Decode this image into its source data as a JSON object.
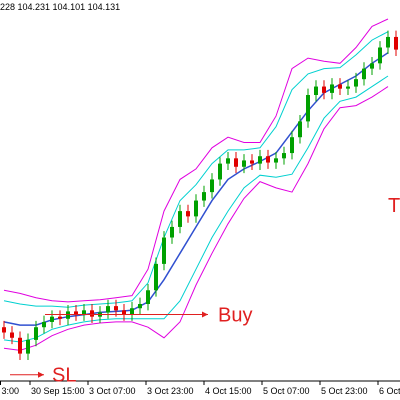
{
  "chart_data": {
    "type": "candlestick",
    "header": "228 104.231 104.101 104.131",
    "xlim": [
      -0.5,
      49.5
    ],
    "ylim": [
      101.0,
      104.6
    ],
    "xticks": [
      {
        "value": -0.5,
        "label": "3:00"
      },
      {
        "value": 3.25,
        "label": "30 Sep 15:00"
      },
      {
        "value": 10.5,
        "label": "3 Oct 07:00"
      },
      {
        "value": 17.75,
        "label": "3 Oct 23:00"
      },
      {
        "value": 25,
        "label": "4 Oct 15:00"
      },
      {
        "value": 32.25,
        "label": "5 Oct 07:00"
      },
      {
        "value": 39.5,
        "label": "5 Oct 23:00"
      },
      {
        "value": 46.75,
        "label": "6 Oct"
      }
    ],
    "up_color": "#00a000",
    "down_color": "#e00000",
    "open": [
      101.5,
      101.45,
      101.4,
      101.25,
      101.38,
      101.5,
      101.55,
      101.6,
      101.58,
      101.65,
      101.62,
      101.66,
      101.6,
      101.64,
      101.7,
      101.66,
      101.62,
      101.68,
      101.72,
      101.85,
      102.1,
      102.35,
      102.45,
      102.6,
      102.55,
      102.7,
      102.78,
      102.9,
      103.05,
      103.1,
      103.02,
      103.08,
      103.05,
      103.12,
      103.06,
      103.1,
      103.15,
      103.3,
      103.45,
      103.7,
      103.78,
      103.72,
      103.8,
      103.76,
      103.78,
      103.85,
      103.95,
      104.0,
      104.15,
      104.25
    ],
    "high": [
      101.56,
      101.51,
      101.46,
      101.44,
      101.56,
      101.61,
      101.66,
      101.66,
      101.71,
      101.71,
      101.72,
      101.72,
      101.7,
      101.76,
      101.76,
      101.72,
      101.74,
      101.78,
      101.91,
      102.16,
      102.41,
      102.51,
      102.66,
      102.66,
      102.76,
      102.84,
      102.96,
      103.11,
      103.16,
      103.16,
      103.14,
      103.14,
      103.18,
      103.18,
      103.16,
      103.21,
      103.36,
      103.51,
      103.76,
      103.84,
      103.84,
      103.86,
      103.86,
      103.84,
      103.91,
      104.01,
      104.06,
      104.21,
      104.31,
      104.31
    ],
    "low": [
      101.39,
      101.34,
      101.19,
      101.19,
      101.32,
      101.44,
      101.49,
      101.52,
      101.52,
      101.56,
      101.56,
      101.54,
      101.54,
      101.58,
      101.6,
      101.56,
      101.56,
      101.62,
      101.66,
      101.79,
      102.04,
      102.29,
      102.39,
      102.49,
      102.49,
      102.64,
      102.72,
      102.84,
      102.99,
      102.96,
      102.96,
      102.99,
      102.99,
      103.0,
      103.0,
      103.04,
      103.09,
      103.24,
      103.39,
      103.64,
      103.66,
      103.66,
      103.7,
      103.7,
      103.72,
      103.79,
      103.89,
      103.94,
      104.09,
      104.07
    ],
    "close": [
      101.45,
      101.4,
      101.25,
      101.38,
      101.5,
      101.55,
      101.6,
      101.58,
      101.65,
      101.62,
      101.66,
      101.6,
      101.64,
      101.7,
      101.66,
      101.62,
      101.68,
      101.72,
      101.85,
      102.1,
      102.35,
      102.45,
      102.6,
      102.55,
      102.7,
      102.78,
      102.9,
      103.05,
      103.1,
      103.02,
      103.08,
      103.05,
      103.12,
      103.06,
      103.1,
      103.15,
      103.3,
      103.45,
      103.7,
      103.78,
      103.72,
      103.8,
      103.76,
      103.78,
      103.85,
      103.95,
      104.0,
      104.15,
      104.25,
      104.13
    ],
    "band_x": [
      0,
      2,
      4,
      6,
      8,
      10,
      12,
      14,
      16,
      18,
      20,
      22,
      24,
      26,
      28,
      30,
      32,
      34,
      36,
      38,
      40,
      42,
      44,
      46,
      48
    ],
    "bands": [
      {
        "color": "#e000e0",
        "values": [
          101.85,
          101.82,
          101.78,
          101.75,
          101.74,
          101.75,
          101.76,
          101.78,
          101.8,
          102.05,
          102.6,
          102.9,
          103.0,
          103.2,
          103.3,
          103.25,
          103.25,
          103.5,
          103.95,
          104.05,
          104.02,
          104.0,
          104.15,
          104.35,
          104.42
        ]
      },
      {
        "color": "#00d0d0",
        "values": [
          101.75,
          101.72,
          101.7,
          101.7,
          101.69,
          101.71,
          101.72,
          101.73,
          101.75,
          101.92,
          102.35,
          102.7,
          102.85,
          103.05,
          103.18,
          103.18,
          103.2,
          103.4,
          103.75,
          103.9,
          103.95,
          103.96,
          104.08,
          104.22,
          104.3
        ]
      },
      {
        "color": "#3050d0",
        "values": [
          101.55,
          101.52,
          101.52,
          101.57,
          101.6,
          101.62,
          101.64,
          101.65,
          101.66,
          101.74,
          101.95,
          102.2,
          102.45,
          102.7,
          102.9,
          103.0,
          103.07,
          103.15,
          103.35,
          103.55,
          103.72,
          103.8,
          103.88,
          104.0,
          104.1
        ]
      },
      {
        "color": "#00d0d0",
        "values": [
          101.38,
          101.36,
          101.4,
          101.48,
          101.52,
          101.55,
          101.57,
          101.58,
          101.58,
          101.58,
          101.58,
          101.75,
          102.05,
          102.35,
          102.6,
          102.82,
          102.94,
          102.92,
          102.95,
          103.2,
          103.48,
          103.64,
          103.68,
          103.78,
          103.88
        ]
      },
      {
        "color": "#e000e0",
        "values": [
          101.3,
          101.28,
          101.33,
          101.42,
          101.48,
          101.52,
          101.54,
          101.55,
          101.55,
          101.5,
          101.4,
          101.55,
          101.9,
          102.2,
          102.48,
          102.72,
          102.88,
          102.82,
          102.78,
          103.05,
          103.38,
          103.58,
          103.6,
          103.68,
          103.78
        ]
      }
    ],
    "levels": [
      {
        "text": "Buy",
        "value": 101.62
      },
      {
        "text": "SL",
        "value": 101.05
      }
    ],
    "side_text": "T"
  }
}
